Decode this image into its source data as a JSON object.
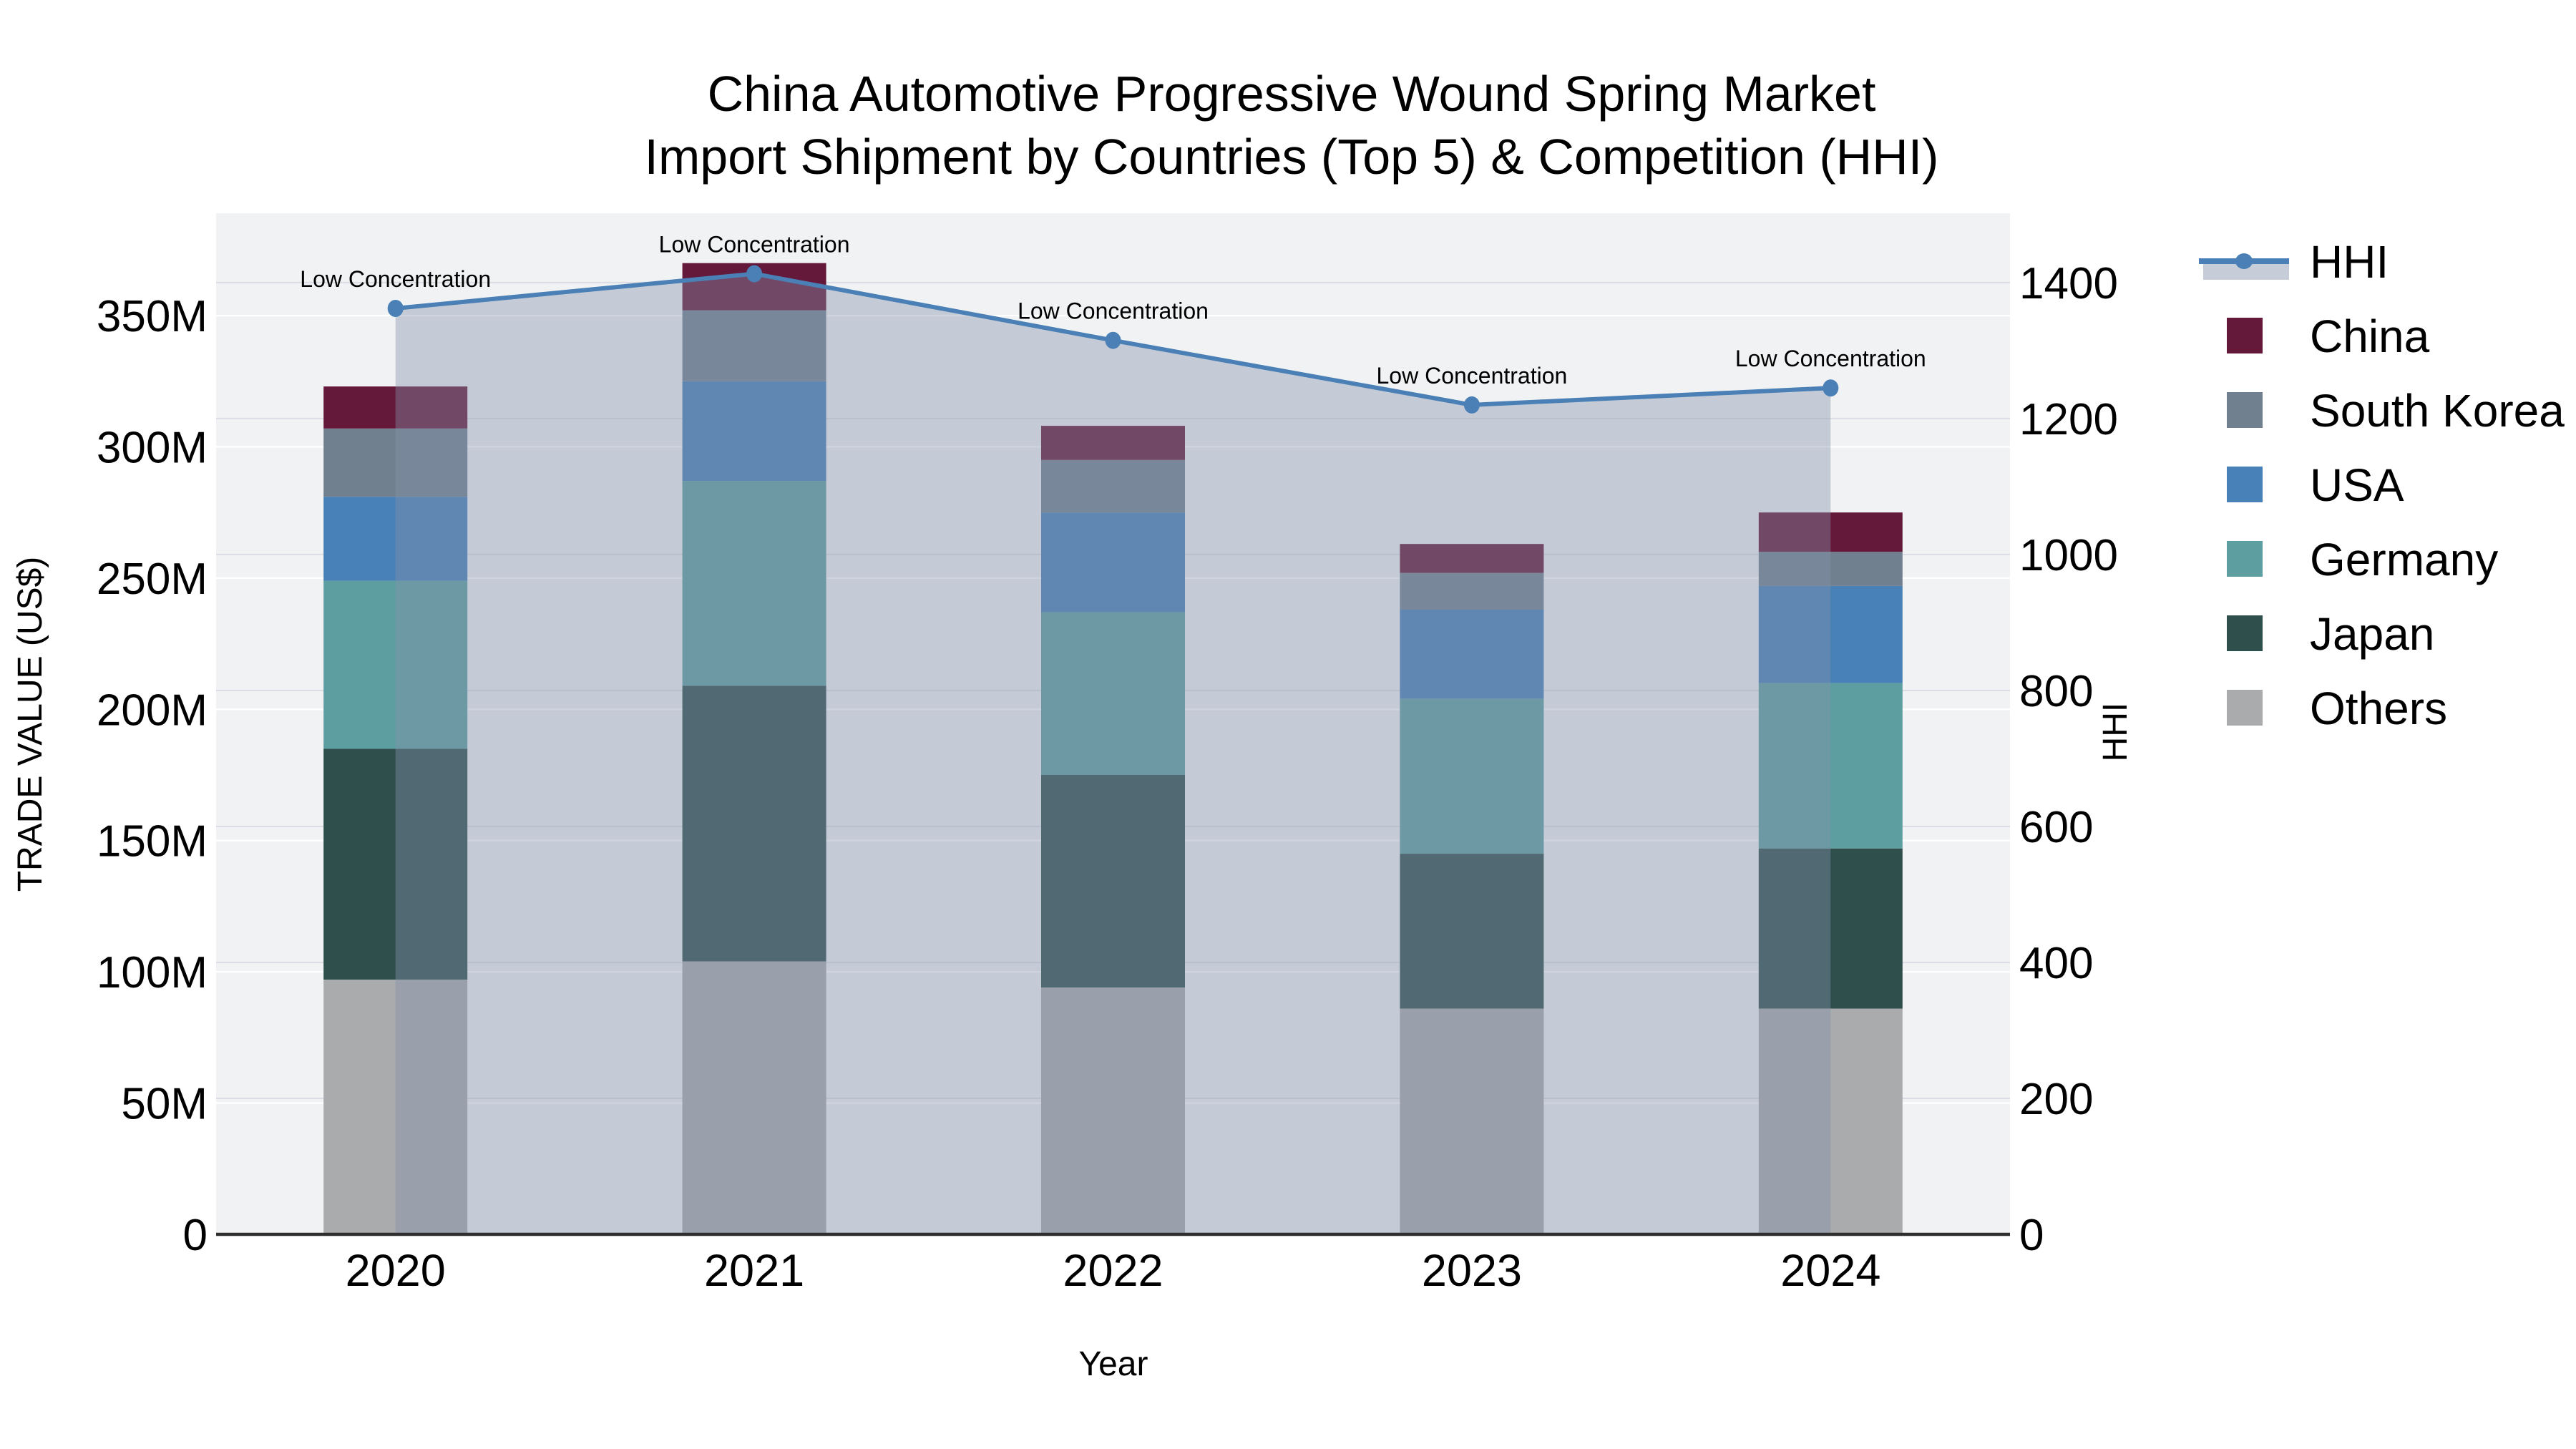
{
  "title": {
    "line1": "China Automotive Progressive Wound Spring Market",
    "line2": "Import Shipment by Countries (Top 5) & Competition (HHI)"
  },
  "axes": {
    "x": {
      "label": "Year",
      "tick_labels": [
        "2020",
        "2021",
        "2022",
        "2023",
        "2024"
      ]
    },
    "y_left": {
      "label": "TRADE VALUE (US$)",
      "tick_values": [
        0,
        50,
        100,
        150,
        200,
        250,
        300,
        350
      ],
      "tick_labels": [
        "0",
        "50M",
        "100M",
        "150M",
        "200M",
        "250M",
        "300M",
        "350M"
      ],
      "range_max": 389
    },
    "y_right": {
      "label": "HHI",
      "tick_values": [
        0,
        200,
        400,
        600,
        800,
        1000,
        1200,
        1400
      ],
      "tick_labels": [
        "0",
        "200",
        "400",
        "600",
        "800",
        "1000",
        "1200",
        "1400"
      ],
      "range_max": 1502
    }
  },
  "legend": {
    "items": [
      {
        "label": "HHI",
        "type": "line",
        "color_key": "hhi_line"
      },
      {
        "label": "China",
        "type": "swatch",
        "color_key": "china"
      },
      {
        "label": "South Korea",
        "type": "swatch",
        "color_key": "south_korea"
      },
      {
        "label": "USA",
        "type": "swatch",
        "color_key": "usa"
      },
      {
        "label": "Germany",
        "type": "swatch",
        "color_key": "germany"
      },
      {
        "label": "Japan",
        "type": "swatch",
        "color_key": "japan"
      },
      {
        "label": "Others",
        "type": "swatch",
        "color_key": "others"
      }
    ]
  },
  "colors": {
    "china": "#64193b",
    "south_korea": "#71808f",
    "usa": "#4781b7",
    "germany": "#5d9ea1",
    "japan": "#2f4f4d",
    "others": "#a9abac",
    "hhi_line": "#4a80b5",
    "hhi_fill": "rgba(132,145,169,0.40)",
    "legend_fill_band": "#c7cdd8",
    "plot_bg": "#f1f2f3",
    "grid_left": "rgba(255,255,255,0.95)",
    "grid_right": "rgba(214,219,225,0.85)",
    "axis_line": "#2f2f2f",
    "annotation_text": "#111111"
  },
  "chart_data": {
    "type": "bar+line",
    "categories": [
      "2020",
      "2021",
      "2022",
      "2023",
      "2024"
    ],
    "stack_order": "bottom-to-top",
    "value_unit": "million US$",
    "series": [
      {
        "name": "Others",
        "color_key": "others",
        "values": [
          97,
          104,
          94,
          86,
          86
        ]
      },
      {
        "name": "Japan",
        "color_key": "japan",
        "values": [
          88,
          105,
          81,
          59,
          61
        ]
      },
      {
        "name": "Germany",
        "color_key": "germany",
        "values": [
          64,
          78,
          62,
          59,
          63
        ]
      },
      {
        "name": "USA",
        "color_key": "usa",
        "values": [
          32,
          38,
          38,
          34,
          37
        ]
      },
      {
        "name": "South Korea",
        "color_key": "south_korea",
        "values": [
          26,
          27,
          20,
          14,
          13
        ]
      },
      {
        "name": "China",
        "color_key": "china",
        "values": [
          16,
          18,
          13,
          11,
          15
        ]
      }
    ],
    "stack_totals": [
      323,
      370,
      308,
      263,
      275
    ],
    "line": {
      "name": "HHI",
      "axis": "right",
      "values": [
        1362,
        1413,
        1315,
        1220,
        1245
      ],
      "annotations": [
        "Low Concentration",
        "Low Concentration",
        "Low Concentration",
        "Low Concentration",
        "Low Concentration"
      ]
    },
    "legend_position": "right",
    "grid": true
  }
}
